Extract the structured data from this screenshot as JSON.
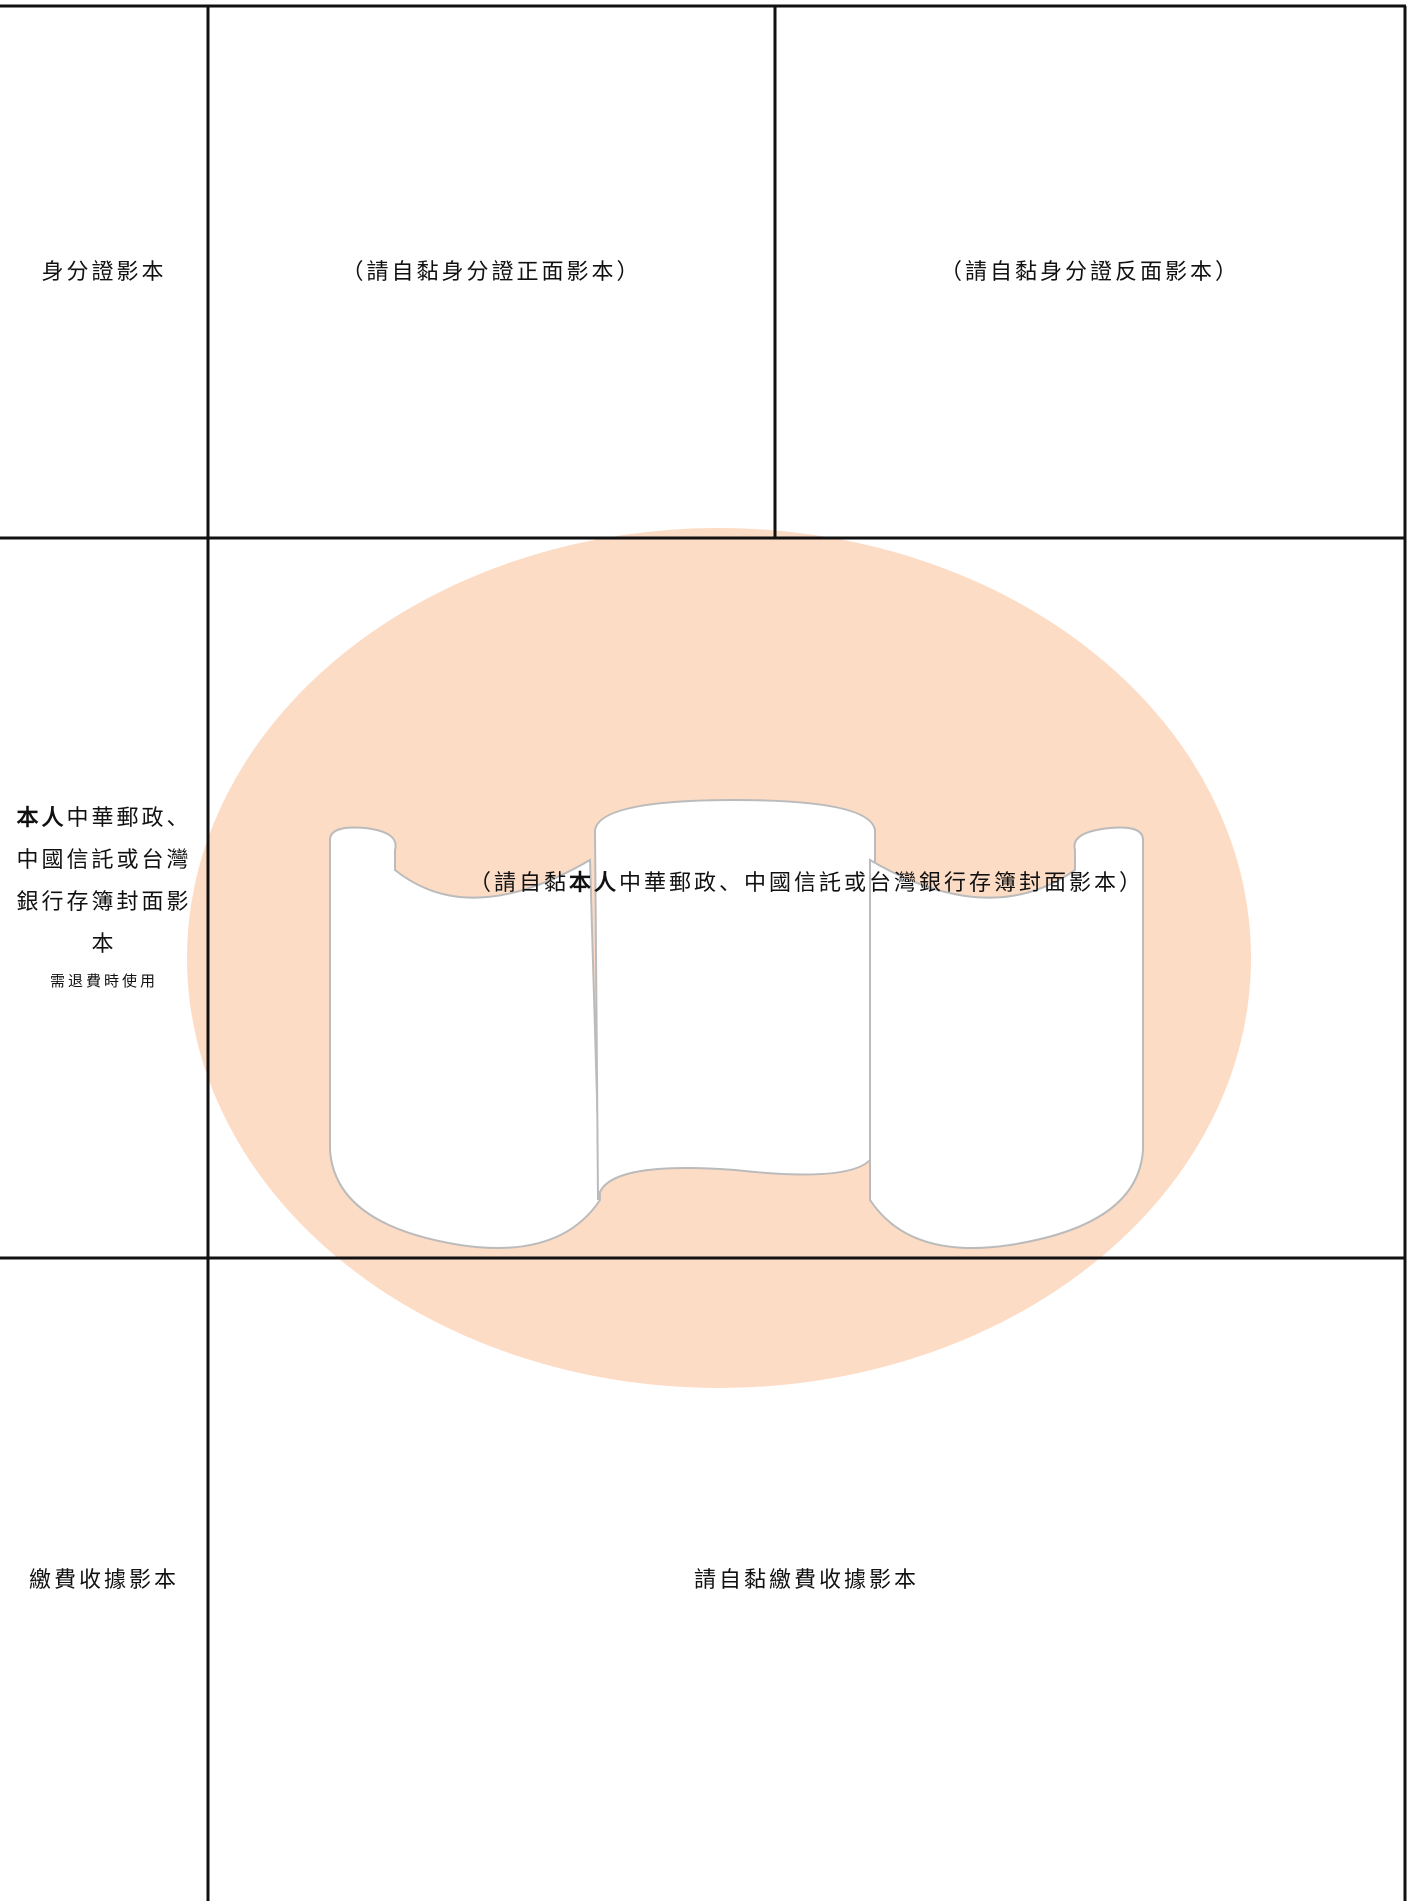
{
  "table": {
    "rows": [
      {
        "label": "身分證影本",
        "cells": [
          "（請自黏身分證正面影本）",
          "（請自黏身分證反面影本）"
        ]
      },
      {
        "label": {
          "bold": "本人",
          "text": "中華郵政、中國信託或台灣銀行存簿封面影本",
          "note": "需退費時使用"
        },
        "cells": [
          {
            "before": "（請自黏",
            "bold": "本人",
            "after": "中華郵政、中國信託或台灣銀行存簿封面影本）"
          }
        ]
      },
      {
        "label": "繳費收據影本",
        "cells": [
          "請自黏繳費收據影本"
        ]
      }
    ]
  }
}
